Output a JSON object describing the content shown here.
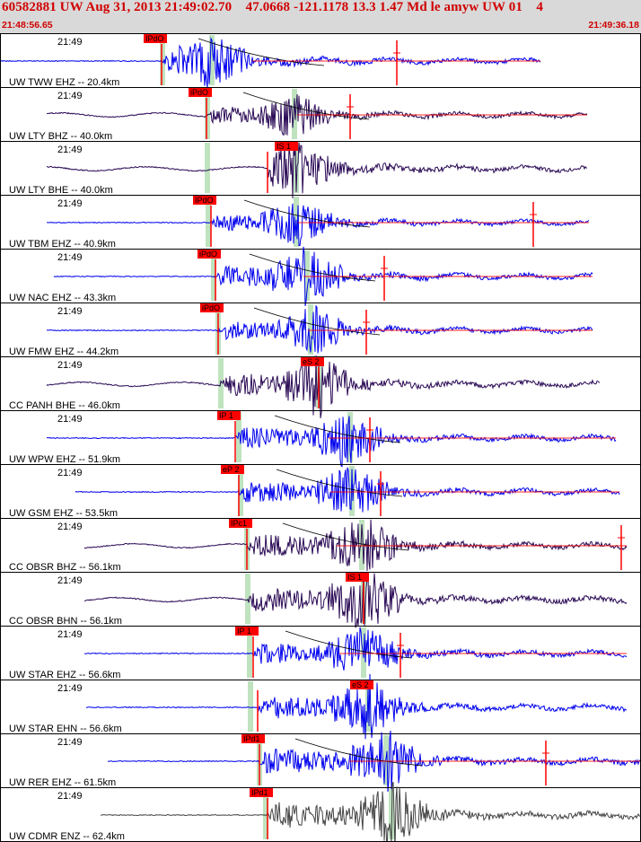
{
  "header": {
    "title": "60582881 UW Aug 31, 2013 21:49:02.70    47.0668 -121.1178 13.3 1.47 Md le amyw UW 01    4",
    "start_time": "21:48:56.65",
    "end_time": "21:49:36.18"
  },
  "colors": {
    "header_bg": "#d9d9d9",
    "header_text": "#d00000",
    "blue_trace": "#0000ee",
    "purple_trace": "#2a0a55",
    "gray_trace": "#444444",
    "pick_marker": "#ff0000",
    "window_band": "#b8e0b8",
    "border": "#000000"
  },
  "traces": [
    {
      "label": "UW TWW EHZ -- 20.4km",
      "time": "21:49",
      "pick": "IPdO",
      "color": "blue_trace"
    },
    {
      "label": "UW LTY BHZ -- 40.0km",
      "time": "21:49",
      "pick": "iPdO",
      "color": "purple_trace"
    },
    {
      "label": "UW LTY BHE -- 40.0km",
      "time": "21:49",
      "pick": "IS 1",
      "color": "purple_trace"
    },
    {
      "label": "UW TBM EHZ -- 40.9km",
      "time": "21:49",
      "pick": "IPdO",
      "color": "blue_trace"
    },
    {
      "label": "UW NAC EHZ -- 43.3km",
      "time": "21:49",
      "pick": "iPdO",
      "color": "blue_trace"
    },
    {
      "label": "UW FMW EHZ -- 44.2km",
      "time": "21:49",
      "pick": "iPdO",
      "color": "blue_trace"
    },
    {
      "label": "CC PANH BHE -- 46.0km",
      "time": "21:49",
      "pick": "eS 2",
      "color": "purple_trace"
    },
    {
      "label": "UW WPW EHZ -- 51.9km",
      "time": "21:49",
      "pick": "IP 1",
      "color": "blue_trace"
    },
    {
      "label": "UW GSM EHZ -- 53.5km",
      "time": "21:49",
      "pick": "eP 2",
      "color": "blue_trace"
    },
    {
      "label": "CC OBSR BHZ -- 56.1km",
      "time": "21:49",
      "pick": "IPc1",
      "color": "purple_trace"
    },
    {
      "label": "CC OBSR BHN -- 56.1km",
      "time": "21:49",
      "pick": "IS 1",
      "color": "purple_trace"
    },
    {
      "label": "UW STAR EHZ -- 56.6km",
      "time": "21:49",
      "pick": "IP 1",
      "color": "blue_trace"
    },
    {
      "label": "UW STAR EHN -- 56.6km",
      "time": "21:49",
      "pick": "eS 2",
      "color": "blue_trace"
    },
    {
      "label": "UW RER EHZ -- 61.5km",
      "time": "21:49",
      "pick": "IPd1",
      "color": "blue_trace"
    },
    {
      "label": "UW CDMR ENZ -- 62.4km",
      "time": "21:49",
      "pick": "IPd1",
      "color": "gray_trace"
    }
  ]
}
